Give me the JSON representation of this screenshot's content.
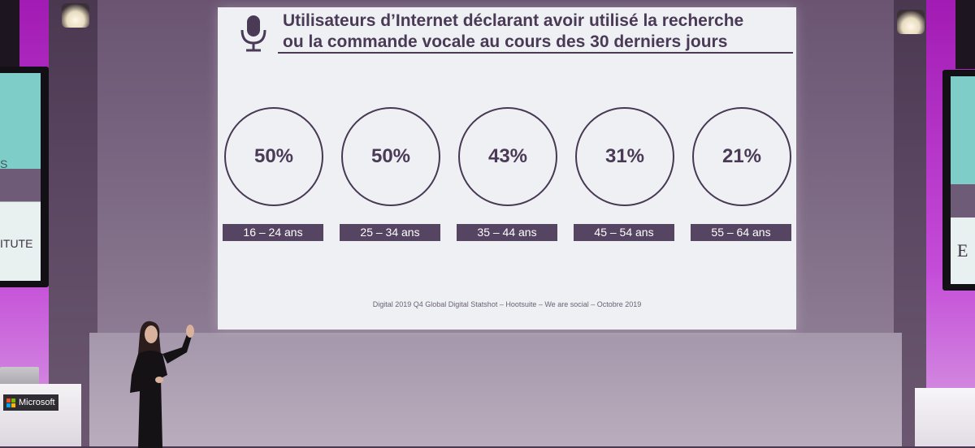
{
  "slide": {
    "title_line1": "Utilisateurs d’Internet déclarant avoir utilisé la recherche",
    "title_line2": "ou la commande vocale au cours des 30 derniers jours",
    "stats": [
      {
        "value": "50%",
        "age": "16 – 24 ans"
      },
      {
        "value": "50%",
        "age": "25 – 34 ans"
      },
      {
        "value": "43%",
        "age": "35 – 44 ans"
      },
      {
        "value": "31%",
        "age": "45 – 54 ans"
      },
      {
        "value": "21%",
        "age": "55 – 64 ans"
      }
    ],
    "source": "Digital 2019 Q4 Global Digital Statshot – Hootsuite – We are social – Octobre 2019"
  },
  "venue": {
    "left_monitor_text": "ITUTE",
    "left_monitor_fragment": "S",
    "right_monitor_text": "E",
    "podium_badge": "Microsoft"
  },
  "colors": {
    "slide_accent": "#4a3a56",
    "age_label_bg": "#564463",
    "stage_light": "#c44bd8"
  }
}
